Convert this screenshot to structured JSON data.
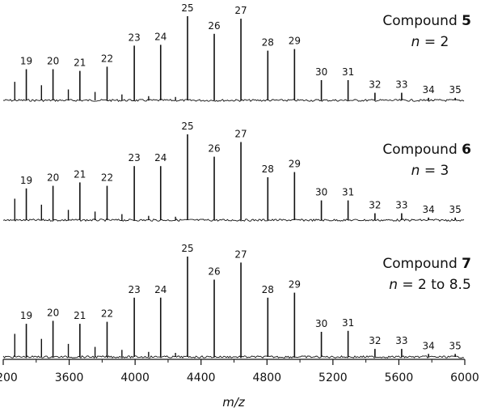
{
  "chart_data": {
    "type": "line",
    "xlabel": "m/z",
    "xlim": [
      3200,
      6000
    ],
    "xticks": [
      3200,
      3600,
      4000,
      4400,
      4800,
      5200,
      5600,
      6000
    ],
    "grid": false,
    "panels": [
      {
        "compound_prefix": "Compound ",
        "compound_number": "5",
        "n_prefix": "n",
        "n_value": " = 2",
        "peaks": [
          {
            "label": "19",
            "x": 3340,
            "y": 0.37
          },
          {
            "label": "20",
            "x": 3502,
            "y": 0.37
          },
          {
            "label": "21",
            "x": 3665,
            "y": 0.35
          },
          {
            "label": "22",
            "x": 3830,
            "y": 0.4
          },
          {
            "label": "23",
            "x": 3995,
            "y": 0.65
          },
          {
            "label": "24",
            "x": 4155,
            "y": 0.66
          },
          {
            "label": "25",
            "x": 4318,
            "y": 1.0
          },
          {
            "label": "26",
            "x": 4480,
            "y": 0.79
          },
          {
            "label": "27",
            "x": 4642,
            "y": 0.97
          },
          {
            "label": "28",
            "x": 4805,
            "y": 0.59
          },
          {
            "label": "29",
            "x": 4967,
            "y": 0.61
          },
          {
            "label": "30",
            "x": 5130,
            "y": 0.24
          },
          {
            "label": "31",
            "x": 5292,
            "y": 0.24
          },
          {
            "label": "32",
            "x": 5455,
            "y": 0.09
          },
          {
            "label": "33",
            "x": 5617,
            "y": 0.09
          },
          {
            "label": "34",
            "x": 5780,
            "y": 0.03
          },
          {
            "label": "35",
            "x": 5942,
            "y": 0.03
          }
        ],
        "minor_peaks": [
          {
            "x": 3270,
            "y": 0.22
          },
          {
            "x": 3432,
            "y": 0.18
          },
          {
            "x": 3595,
            "y": 0.13
          },
          {
            "x": 3757,
            "y": 0.1
          },
          {
            "x": 3920,
            "y": 0.07
          },
          {
            "x": 4082,
            "y": 0.05
          },
          {
            "x": 4245,
            "y": 0.04
          }
        ]
      },
      {
        "compound_prefix": "Compound ",
        "compound_number": "6",
        "n_prefix": "n",
        "n_value": " = 3",
        "peaks": [
          {
            "label": "19",
            "x": 3340,
            "y": 0.37
          },
          {
            "label": "20",
            "x": 3502,
            "y": 0.4
          },
          {
            "label": "21",
            "x": 3665,
            "y": 0.44
          },
          {
            "label": "22",
            "x": 3830,
            "y": 0.4
          },
          {
            "label": "23",
            "x": 3995,
            "y": 0.63
          },
          {
            "label": "24",
            "x": 4155,
            "y": 0.63
          },
          {
            "label": "25",
            "x": 4318,
            "y": 1.0
          },
          {
            "label": "26",
            "x": 4480,
            "y": 0.74
          },
          {
            "label": "27",
            "x": 4642,
            "y": 0.91
          },
          {
            "label": "28",
            "x": 4805,
            "y": 0.5
          },
          {
            "label": "29",
            "x": 4967,
            "y": 0.56
          },
          {
            "label": "30",
            "x": 5130,
            "y": 0.23
          },
          {
            "label": "31",
            "x": 5292,
            "y": 0.23
          },
          {
            "label": "32",
            "x": 5455,
            "y": 0.08
          },
          {
            "label": "33",
            "x": 5617,
            "y": 0.08
          },
          {
            "label": "34",
            "x": 5780,
            "y": 0.03
          },
          {
            "label": "35",
            "x": 5942,
            "y": 0.03
          }
        ],
        "minor_peaks": [
          {
            "x": 3270,
            "y": 0.25
          },
          {
            "x": 3432,
            "y": 0.18
          },
          {
            "x": 3595,
            "y": 0.12
          },
          {
            "x": 3757,
            "y": 0.1
          },
          {
            "x": 3920,
            "y": 0.07
          },
          {
            "x": 4082,
            "y": 0.05
          },
          {
            "x": 4245,
            "y": 0.04
          }
        ]
      },
      {
        "compound_prefix": "Compound ",
        "compound_number": "7",
        "n_prefix": "n",
        "n_value": " = 2 to 8.5",
        "peaks": [
          {
            "label": "19",
            "x": 3340,
            "y": 0.33
          },
          {
            "label": "20",
            "x": 3502,
            "y": 0.36
          },
          {
            "label": "21",
            "x": 3665,
            "y": 0.33
          },
          {
            "label": "22",
            "x": 3830,
            "y": 0.35
          },
          {
            "label": "23",
            "x": 3995,
            "y": 0.59
          },
          {
            "label": "24",
            "x": 4155,
            "y": 0.59
          },
          {
            "label": "25",
            "x": 4318,
            "y": 1.0
          },
          {
            "label": "26",
            "x": 4480,
            "y": 0.77
          },
          {
            "label": "27",
            "x": 4642,
            "y": 0.94
          },
          {
            "label": "28",
            "x": 4805,
            "y": 0.59
          },
          {
            "label": "29",
            "x": 4967,
            "y": 0.64
          },
          {
            "label": "30",
            "x": 5130,
            "y": 0.25
          },
          {
            "label": "31",
            "x": 5292,
            "y": 0.26
          },
          {
            "label": "32",
            "x": 5455,
            "y": 0.08
          },
          {
            "label": "33",
            "x": 5617,
            "y": 0.08
          },
          {
            "label": "34",
            "x": 5780,
            "y": 0.03
          },
          {
            "label": "35",
            "x": 5942,
            "y": 0.03
          }
        ],
        "minor_peaks": [
          {
            "x": 3270,
            "y": 0.23
          },
          {
            "x": 3432,
            "y": 0.18
          },
          {
            "x": 3595,
            "y": 0.13
          },
          {
            "x": 3757,
            "y": 0.1
          },
          {
            "x": 3920,
            "y": 0.07
          },
          {
            "x": 4082,
            "y": 0.05
          },
          {
            "x": 4245,
            "y": 0.04
          }
        ]
      }
    ]
  }
}
